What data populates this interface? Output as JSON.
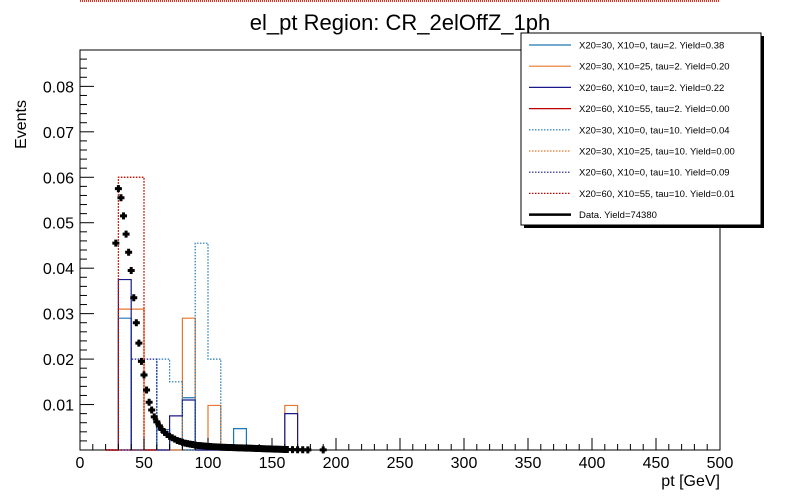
{
  "chart_data": {
    "type": "histogram",
    "title": "el_pt Region: CR_2elOffZ_1ph",
    "xlabel": "pt [GeV]",
    "ylabel": "Events",
    "xlim": [
      0,
      500
    ],
    "ylim": [
      0,
      0.088
    ],
    "xticks": [
      0,
      50,
      100,
      150,
      200,
      250,
      300,
      350,
      400,
      450,
      500
    ],
    "xtick_labels": [
      "0",
      "50",
      "100",
      "150",
      "200",
      "250",
      "300",
      "350",
      "400",
      "450",
      "500"
    ],
    "yticks": [
      0.01,
      0.02,
      0.03,
      0.04,
      0.05,
      0.06,
      0.07,
      0.08
    ],
    "ytick_labels": [
      "0.01",
      "0.02",
      "0.03",
      "0.04",
      "0.05",
      "0.06",
      "0.07",
      "0.08"
    ],
    "grid": false,
    "legend_position": "top-right",
    "bin_width": 10,
    "series": [
      {
        "name": "X20=30, X10=0, tau=2. Yield=0.38",
        "color": "#1f77b4",
        "style": "solid",
        "bins": [
          [
            20,
            30,
            0.0
          ],
          [
            30,
            40,
            0.029
          ],
          [
            40,
            50,
            0.0
          ],
          [
            50,
            60,
            0.0
          ],
          [
            60,
            70,
            0.0045
          ],
          [
            70,
            80,
            0.0
          ],
          [
            80,
            90,
            0.0115
          ],
          [
            90,
            100,
            0.0
          ],
          [
            100,
            110,
            0.0
          ],
          [
            110,
            120,
            0.0
          ],
          [
            120,
            130,
            0.0047
          ],
          [
            130,
            140,
            0.0
          ],
          [
            140,
            150,
            0.0
          ],
          [
            150,
            160,
            0.0
          ],
          [
            160,
            170,
            0.0
          ],
          [
            170,
            180,
            0.0
          ]
        ]
      },
      {
        "name": "X20=30, X10=25, tau=2. Yield=0.20",
        "color": "#e8762c",
        "style": "solid",
        "bins": [
          [
            20,
            30,
            0.0
          ],
          [
            30,
            40,
            0.031
          ],
          [
            40,
            50,
            0.031
          ],
          [
            50,
            60,
            0.0
          ],
          [
            60,
            70,
            0.0
          ],
          [
            70,
            80,
            0.0
          ],
          [
            80,
            90,
            0.029
          ],
          [
            90,
            100,
            0.0
          ],
          [
            100,
            110,
            0.0098
          ],
          [
            110,
            120,
            0.0
          ],
          [
            120,
            130,
            0.0
          ],
          [
            130,
            140,
            0.0
          ],
          [
            140,
            150,
            0.0
          ],
          [
            150,
            160,
            0.0
          ],
          [
            160,
            170,
            0.0098
          ],
          [
            170,
            180,
            0.0
          ]
        ]
      },
      {
        "name": "X20=60, X10=0, tau=2. Yield=0.22",
        "color": "#1a1a8c",
        "style": "solid",
        "bins": [
          [
            20,
            30,
            0.0
          ],
          [
            30,
            40,
            0.0375
          ],
          [
            40,
            50,
            0.0
          ],
          [
            50,
            60,
            0.0
          ],
          [
            60,
            70,
            0.0
          ],
          [
            70,
            80,
            0.0075
          ],
          [
            80,
            90,
            0.011
          ],
          [
            90,
            100,
            0.0
          ],
          [
            100,
            110,
            0.0
          ],
          [
            110,
            120,
            0.0
          ],
          [
            120,
            130,
            0.0
          ],
          [
            130,
            140,
            0.0
          ],
          [
            140,
            150,
            0.0
          ],
          [
            150,
            160,
            0.0
          ],
          [
            160,
            170,
            0.008
          ],
          [
            170,
            180,
            0.0
          ]
        ]
      },
      {
        "name": "X20=60, X10=55, tau=2. Yield=0.00",
        "color": "#c00000",
        "style": "solid",
        "bins": [
          [
            20,
            30,
            0.0
          ],
          [
            30,
            40,
            0.0
          ],
          [
            40,
            50,
            0.0
          ],
          [
            50,
            60,
            0.0
          ]
        ]
      },
      {
        "name": "X20=30, X10=0, tau=10. Yield=0.04",
        "color": "#1f77b4",
        "style": "dotted",
        "bins": [
          [
            20,
            30,
            0.0
          ],
          [
            30,
            40,
            0.0
          ],
          [
            40,
            50,
            0.0
          ],
          [
            50,
            60,
            0.0
          ],
          [
            60,
            70,
            0.02
          ],
          [
            70,
            80,
            0.015
          ],
          [
            80,
            90,
            0.0
          ],
          [
            90,
            100,
            0.0455
          ],
          [
            100,
            110,
            0.02
          ],
          [
            110,
            120,
            0.0
          ]
        ]
      },
      {
        "name": "X20=30, X10=25, tau=10. Yield=0.00",
        "color": "#e8762c",
        "style": "dotted",
        "bins": [
          [
            20,
            30,
            0.0
          ],
          [
            30,
            40,
            0.06
          ],
          [
            40,
            50,
            0.06
          ],
          [
            50,
            60,
            0.0
          ]
        ]
      },
      {
        "name": "X20=60, X10=0, tau=10. Yield=0.09",
        "color": "#1a1a8c",
        "style": "dotted",
        "bins": [
          [
            20,
            30,
            0.0
          ],
          [
            30,
            40,
            0.0
          ],
          [
            40,
            50,
            0.02
          ],
          [
            50,
            60,
            0.02
          ],
          [
            60,
            70,
            0.0
          ]
        ]
      },
      {
        "name": "X20=60, X10=55, tau=10. Yield=0.01",
        "color": "#c00000",
        "style": "dotted",
        "bins": [
          [
            20,
            30,
            0.0
          ],
          [
            30,
            40,
            0.06
          ],
          [
            40,
            50,
            0.06
          ],
          [
            50,
            60,
            0.0
          ]
        ]
      }
    ],
    "data_series": {
      "name": "Data. Yield=74380",
      "color": "#000000",
      "points": [
        [
          28,
          0.0455
        ],
        [
          30,
          0.0575
        ],
        [
          32,
          0.0555
        ],
        [
          34,
          0.0515
        ],
        [
          36,
          0.0475
        ],
        [
          38,
          0.0435
        ],
        [
          40,
          0.0395
        ],
        [
          42,
          0.0335
        ],
        [
          44,
          0.028
        ],
        [
          46,
          0.0235
        ],
        [
          48,
          0.0195
        ],
        [
          50,
          0.0165
        ],
        [
          52,
          0.0132
        ],
        [
          54,
          0.0105
        ],
        [
          56,
          0.0088
        ],
        [
          58,
          0.0073
        ],
        [
          60,
          0.0062
        ],
        [
          62,
          0.0053
        ],
        [
          64,
          0.0045
        ],
        [
          66,
          0.0039
        ],
        [
          68,
          0.0034
        ],
        [
          70,
          0.003
        ],
        [
          72,
          0.0027
        ],
        [
          74,
          0.0024
        ],
        [
          76,
          0.0021
        ],
        [
          78,
          0.0019
        ],
        [
          80,
          0.0017
        ],
        [
          82,
          0.0015
        ],
        [
          84,
          0.0014
        ],
        [
          86,
          0.0013
        ],
        [
          88,
          0.0012
        ],
        [
          90,
          0.0011
        ],
        [
          92,
          0.001
        ],
        [
          94,
          0.00095
        ],
        [
          96,
          0.0009
        ],
        [
          98,
          0.00085
        ],
        [
          100,
          0.0008
        ],
        [
          102,
          0.00076
        ],
        [
          104,
          0.00072
        ],
        [
          106,
          0.00068
        ],
        [
          108,
          0.00065
        ],
        [
          110,
          0.00062
        ],
        [
          112,
          0.0006
        ],
        [
          114,
          0.00058
        ],
        [
          116,
          0.00056
        ],
        [
          118,
          0.00054
        ],
        [
          120,
          0.00052
        ],
        [
          122,
          0.0005
        ],
        [
          124,
          0.00048
        ],
        [
          126,
          0.00046
        ],
        [
          128,
          0.00044
        ],
        [
          130,
          0.00042
        ],
        [
          132,
          0.0004
        ],
        [
          134,
          0.00038
        ],
        [
          136,
          0.00036
        ],
        [
          138,
          0.00034
        ],
        [
          140,
          0.00032
        ],
        [
          142,
          0.0003
        ],
        [
          144,
          0.00028
        ],
        [
          146,
          0.00026
        ],
        [
          148,
          0.00024
        ],
        [
          150,
          0.00022
        ],
        [
          152,
          0.0002
        ],
        [
          154,
          0.00018
        ],
        [
          156,
          0.00016
        ],
        [
          158,
          0.00014
        ],
        [
          160,
          0.00012
        ],
        [
          162,
          0.0001
        ],
        [
          166,
          8e-05
        ],
        [
          170,
          6e-05
        ],
        [
          174,
          5e-05
        ],
        [
          178,
          4e-05
        ],
        [
          190,
          3e-05
        ]
      ]
    }
  }
}
